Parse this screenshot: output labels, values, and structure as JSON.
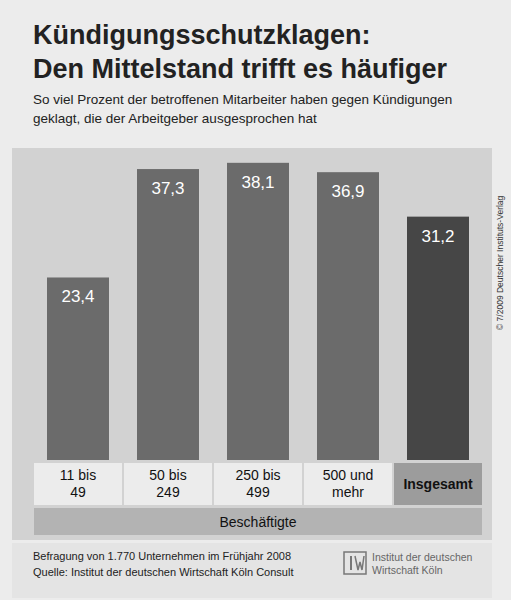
{
  "chart_data": {
    "type": "bar",
    "title": [
      "Kündigungsschutzklagen:",
      "Den Mittelstand trifft es häufiger"
    ],
    "subtitle": "So viel Prozent der betroffenen Mitarbeiter haben gegen Kündigungen geklagt, die der Arbeitgeber ausgesprochen hat",
    "categories": [
      "11 bis 49",
      "50 bis 249",
      "250 bis 499",
      "500 und mehr",
      "Insgesamt"
    ],
    "values": [
      23.4,
      37.3,
      38.1,
      36.9,
      31.2
    ],
    "value_labels": [
      "23,4",
      "37,3",
      "38,1",
      "36,9",
      "31,2"
    ],
    "colors": [
      "#6b6b6b",
      "#6b6b6b",
      "#6b6b6b",
      "#6b6b6b",
      "#464646"
    ],
    "x_label": "Beschäftigte",
    "ylim": [
      0,
      40
    ],
    "data_labels": true,
    "tick_labels": "x",
    "grid": false,
    "note": "Befragung von 1.770 Unternehmen im Frühjahr 2008",
    "source": "Quelle: Institut der deutschen Wirtschaft Köln Consult",
    "logo": "Institut der deutschen Wirtschaft Köln",
    "copyright": "© 7/2009 Deutscher Instituts-Verlag"
  }
}
